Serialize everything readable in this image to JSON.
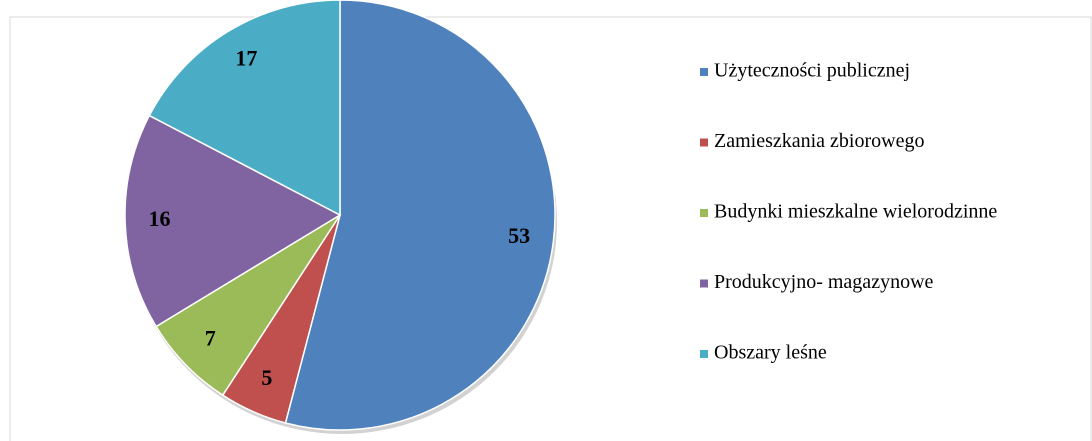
{
  "chart_data": {
    "type": "pie",
    "categories": [
      "Użyteczności publicznej",
      "Zamieszkania zbiorowego",
      "Budynki mieszkalne wielorodzinne",
      "Produkcyjno- magazynowe",
      "Obszary leśne"
    ],
    "values": [
      53,
      5,
      7,
      16,
      17
    ],
    "colors": [
      "#4f81bd",
      "#c0504d",
      "#9bbb59",
      "#8064a2",
      "#4bacc6"
    ],
    "legend": "right"
  }
}
